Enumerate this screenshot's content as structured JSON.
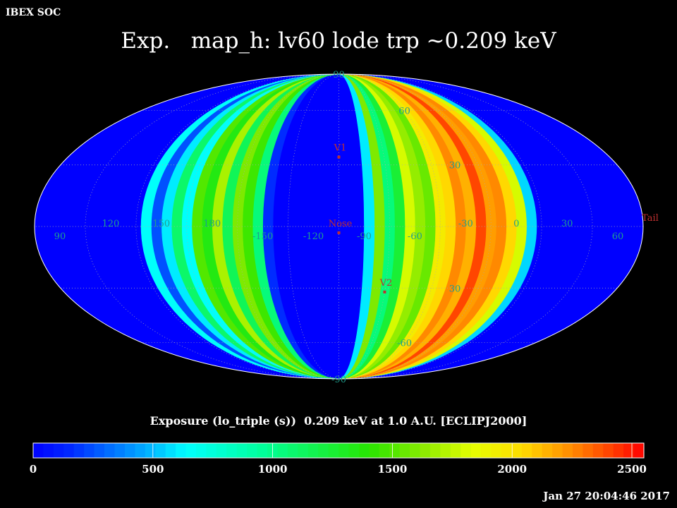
{
  "header": {
    "org": "IBEX SOC",
    "title": "Exp.   map_h: lv60 lode trp ~0.209 keV"
  },
  "colorbar": {
    "title": "Exposure (lo_triple (s))  0.209 keV at 1.0 A.U. [ECLIPJ2000]",
    "ticks": [
      "0",
      "500",
      "1000",
      "1500",
      "2000",
      "2500"
    ],
    "range": [
      0,
      2550
    ],
    "unit": "s"
  },
  "timestamp": "Jan 27 20:04:46 2017",
  "map": {
    "projection": "Mollweide (Aitoff-style all-sky ellipse)",
    "coordinate_frame": "ECLIPJ2000",
    "center_longitude_deg": -105,
    "longitude_labels": [
      {
        "text": "60",
        "lon": 60
      },
      {
        "text": "30",
        "lon": 30
      },
      {
        "text": "0",
        "lon": 0
      },
      {
        "text": "-30",
        "lon": -30
      },
      {
        "text": "-60",
        "lon": -60
      },
      {
        "text": "-90",
        "lon": -90
      },
      {
        "text": "-120",
        "lon": -120
      },
      {
        "text": "-150",
        "lon": -150
      },
      {
        "text": "180",
        "lon": 180
      },
      {
        "text": "150",
        "lon": 150
      },
      {
        "text": "120",
        "lon": 120
      },
      {
        "text": "90",
        "lon": 90
      }
    ],
    "latitude_labels": [
      {
        "text": "90",
        "lat": 90
      },
      {
        "text": "60",
        "lat": 60
      },
      {
        "text": "30",
        "lat": 30
      },
      {
        "text": "30",
        "lat": -30
      },
      {
        "text": "-60",
        "lat": -60
      },
      {
        "text": "-90",
        "lat": -90
      }
    ],
    "markers": [
      {
        "label": "V1",
        "lon": -105,
        "lat": 34
      },
      {
        "label": "Nose",
        "lon": -105,
        "lat": -3
      },
      {
        "label": "V2",
        "lon": -75,
        "lat": -32
      },
      {
        "label": "Tail",
        "lon": 75,
        "lat": 0
      }
    ],
    "exposure_bands": [
      {
        "lon_from": 48,
        "lon_to": 12,
        "value": 0
      },
      {
        "lon_from": 12,
        "lon_to": 6,
        "value": 560
      },
      {
        "lon_from": 6,
        "lon_to": 0,
        "value": 1800
      },
      {
        "lon_from": 0,
        "lon_to": -6,
        "value": 2050
      },
      {
        "lon_from": -6,
        "lon_to": -12,
        "value": 2250
      },
      {
        "lon_from": -12,
        "lon_to": -18,
        "value": 2200
      },
      {
        "lon_from": -18,
        "lon_to": -24,
        "value": 2400
      },
      {
        "lon_from": -24,
        "lon_to": -30,
        "value": 2150
      },
      {
        "lon_from": -30,
        "lon_to": -36,
        "value": 2250
      },
      {
        "lon_from": -36,
        "lon_to": -42,
        "value": 2050
      },
      {
        "lon_from": -42,
        "lon_to": -48,
        "value": 1950
      },
      {
        "lon_from": -48,
        "lon_to": -54,
        "value": 1550
      },
      {
        "lon_from": -54,
        "lon_to": -60,
        "value": 1650
      },
      {
        "lon_from": -60,
        "lon_to": -66,
        "value": 1800
      },
      {
        "lon_from": -66,
        "lon_to": -72,
        "value": 1250
      },
      {
        "lon_from": -72,
        "lon_to": -78,
        "value": 1050
      },
      {
        "lon_from": -78,
        "lon_to": -84,
        "value": 1600
      },
      {
        "lon_from": -84,
        "lon_to": -90,
        "value": 600
      },
      {
        "lon_from": -90,
        "lon_to": -144,
        "value": 0
      },
      {
        "lon_from": -144,
        "lon_to": -150,
        "value": 160
      },
      {
        "lon_from": -150,
        "lon_to": -156,
        "value": 1050
      },
      {
        "lon_from": -156,
        "lon_to": -162,
        "value": 1450
      },
      {
        "lon_from": -162,
        "lon_to": -168,
        "value": 1600
      },
      {
        "lon_from": -168,
        "lon_to": -174,
        "value": 1150
      },
      {
        "lon_from": -174,
        "lon_to": -180,
        "value": 1700
      },
      {
        "lon_from": 180,
        "lon_to": 174,
        "value": 1350
      },
      {
        "lon_from": 174,
        "lon_to": 168,
        "value": 1500
      },
      {
        "lon_from": 168,
        "lon_to": 162,
        "value": 650
      },
      {
        "lon_from": 162,
        "lon_to": 156,
        "value": 1100
      },
      {
        "lon_from": 156,
        "lon_to": 150,
        "value": 600
      },
      {
        "lon_from": 150,
        "lon_to": 144,
        "value": 250
      },
      {
        "lon_from": 144,
        "lon_to": 138,
        "value": 650
      }
    ],
    "colors": {
      "background": "#000000",
      "grid": "#aaaaaa",
      "graticule_label": "#1f9f8f",
      "marker": "#c03030"
    }
  }
}
